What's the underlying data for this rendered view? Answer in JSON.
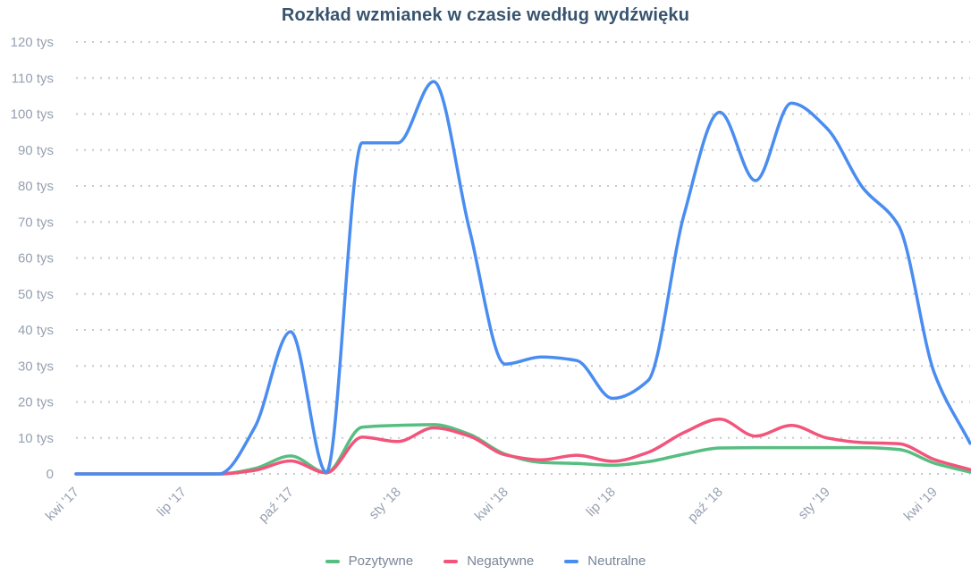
{
  "title": "Rozkład wzmianek w czasie według wydźwięku",
  "colors": {
    "title": "#37536e",
    "axis_labels": "#97a1b2",
    "legend_text": "#7a8598",
    "grid": "#c9c9c9",
    "background": "#ffffff"
  },
  "chart_data": {
    "type": "line",
    "title": "Rozkład wzmianek w czasie według wydźwięku",
    "xlabel": "",
    "ylabel": "",
    "y_unit": "tys",
    "values_in_thousands": true,
    "ylim": [
      0,
      120
    ],
    "grid": "horizontal-dotted",
    "legend_position": "bottom",
    "smooth": true,
    "x": [
      "kwi '17",
      "maj '17",
      "cze '17",
      "lip '17",
      "sie '17",
      "wrz '17",
      "paź '17",
      "lis '17",
      "gru '17",
      "sty '18",
      "lut '18",
      "mar '18",
      "kwi '18",
      "maj '18",
      "cze '18",
      "lip '18",
      "sie '18",
      "wrz '18",
      "paź '18",
      "lis '18",
      "gru '18",
      "sty '19",
      "lut '19",
      "mar '19",
      "kwi '19",
      "maj '19"
    ],
    "x_tick_labels": [
      "kwi '17",
      "lip '17",
      "paź '17",
      "sty '18",
      "kwi '18",
      "lip '18",
      "paź '18",
      "sty '19",
      "kwi '19"
    ],
    "y_tick_labels": [
      "0",
      "10 tys",
      "20 tys",
      "30 tys",
      "40 tys",
      "50 tys",
      "60 tys",
      "70 tys",
      "80 tys",
      "90 tys",
      "100 tys",
      "110 tys",
      "120 tys"
    ],
    "series": [
      {
        "name": "Pozytywne",
        "color": "#57be81",
        "values": [
          0,
          0,
          0,
          0,
          0,
          1.5,
          5,
          0.4,
          13,
          13.5,
          13.7,
          11,
          5.5,
          3.2,
          2.9,
          2.4,
          3.4,
          5.5,
          7.2,
          7.3,
          7.3,
          7.3,
          7.3,
          6.8,
          3,
          0.5
        ]
      },
      {
        "name": "Negatywne",
        "color": "#f2557b",
        "values": [
          0,
          0,
          0,
          0,
          0,
          1,
          3.6,
          0.3,
          10.2,
          9,
          12.8,
          10.5,
          5.3,
          3.9,
          5.2,
          3.5,
          6,
          11.5,
          15.2,
          10.5,
          13.5,
          10,
          8.7,
          8.4,
          4,
          1.2
        ]
      },
      {
        "name": "Neutralne",
        "color": "#4a8df0",
        "values": [
          0,
          0,
          0,
          0,
          0,
          13,
          39.5,
          0.5,
          92,
          92,
          109,
          68,
          30.5,
          32.5,
          31.5,
          21,
          26,
          72,
          100.5,
          81.5,
          103,
          96,
          79.5,
          69,
          28,
          8.5
        ]
      }
    ]
  }
}
